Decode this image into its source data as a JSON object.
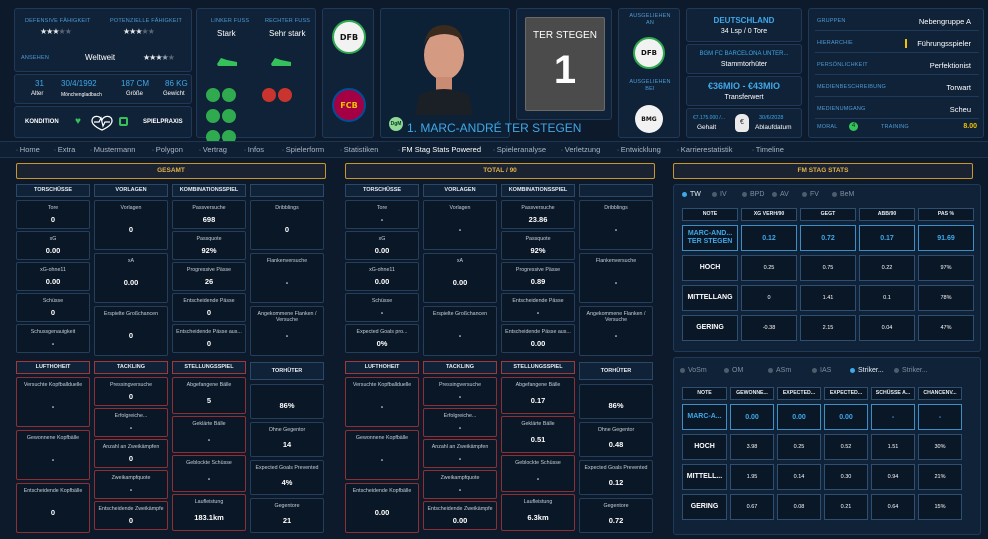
{
  "colors": {
    "accent": "#3fa8e8",
    "gold": "#e6b24a",
    "green": "#35c25a",
    "card": "#0f2238"
  },
  "top": {
    "ratings": {
      "defensive_label": "Defensive Fähigkeit",
      "potential_label": "Potenzielle Fähigkeit",
      "defensive_stars": 3,
      "potential_stars": 3,
      "reputation_label": "Ansehen",
      "reputation_value": "Weltweit",
      "reputation_stars": 3.5
    },
    "bio": {
      "age": "31",
      "age_label": "Alter",
      "dob": "30/4/1992",
      "birthplace": "Mönchengladbach",
      "height": "187 CM",
      "height_label": "Größe",
      "weight": "86 KG",
      "weight_label": "Gewicht"
    },
    "fitness": {
      "condition_label": "Kondition",
      "practice_label": "Spielpraxis"
    },
    "feet": {
      "left_label": "Linker Fuß",
      "left_value": "Stark",
      "right_label": "Rechter Fuß",
      "right_value": "Sehr stark"
    },
    "player": {
      "number": "1",
      "name": "1. MARC-ANDRÉ TER STEGEN",
      "badge": "DgM",
      "jersey_name": "TER STEGEN",
      "jersey_number": "1"
    },
    "clubs": {
      "national_crest": "DFB",
      "club_crest": "FCB",
      "loan_label": "Ausgeliehen an",
      "loaned_from_label": "Ausgeliehen bei",
      "youth_crest": "BMG"
    },
    "nation": {
      "name": "DEUTSCHLAND",
      "caps": "34 Lsp / 0 Tore"
    },
    "club_role": {
      "club": "BGM FC BARCELONA UNTER...",
      "role": "Stammtorhüter"
    },
    "value": {
      "range": "€36MIO - €43MIO",
      "label": "Transferwert"
    },
    "contract": {
      "wage": "€7.175.000 /...",
      "wage_label": "Gehalt",
      "expiry": "30/6/2028",
      "expiry_label": "Ablaufdatum"
    },
    "info": [
      {
        "label": "Gruppen",
        "value": "Nebengruppe A"
      },
      {
        "label": "Hierarchie",
        "value": "Führungsspieler"
      },
      {
        "label": "Persönlichkeit",
        "value": "Perfektionist"
      },
      {
        "label": "Medienbeschreibung",
        "value": "Torwart"
      },
      {
        "label": "Medienumgang",
        "value": "Scheu"
      }
    ],
    "morale": {
      "label": "Moral",
      "badge": "4",
      "training_label": "Training",
      "training_value": "8.00"
    }
  },
  "nav": [
    "Home",
    "Extra",
    "Mustermann",
    "Polygon",
    "Vertrag",
    "Infos",
    "Spielerform",
    "Statistiken",
    "FM Stag Stats Powered",
    "Spieleranalyse",
    "Verletzung",
    "Entwicklung",
    "Karrierestatistik",
    "Timeline"
  ],
  "nav_active": 8,
  "panels": [
    {
      "title": "GESAMT",
      "sections": {
        "shots": "TORSCHÜSSE",
        "assists": "VORLAGEN",
        "combo": "KOMBINATIONSSPIEL",
        "air": "LUFTHOHEIT",
        "tackling": "TACKLING",
        "position": "STELLUNGSSPIEL",
        "gk": "TORHÜTER"
      },
      "shots": [
        {
          "k": "Tore",
          "v": "0"
        },
        {
          "k": "xG",
          "v": "0.00"
        },
        {
          "k": "xG-ohne11",
          "v": "0.00"
        },
        {
          "k": "Schüsse",
          "v": "0"
        },
        {
          "k": "Schussgenauigkeit",
          "v": "-"
        }
      ],
      "assists": [
        {
          "k": "Vorlagen",
          "v": "0"
        },
        {
          "k": "xA",
          "v": "0.00"
        },
        {
          "k": "Erspielte Großchancen",
          "v": "0"
        }
      ],
      "combo": [
        {
          "k": "Passversuche",
          "v": "698"
        },
        {
          "k": "Passquote",
          "v": "92%"
        },
        {
          "k": "Progressive Pässe",
          "v": "26"
        },
        {
          "k": "Entscheidende Pässe",
          "v": "0"
        },
        {
          "k": "Entscheidende Pässe aus...",
          "v": "0"
        }
      ],
      "dribbles": [
        {
          "k": "Dribblings",
          "v": "0"
        },
        {
          "k": "Flankenversuche",
          "v": "-"
        },
        {
          "k": "Angekommene Flanken / Versuche",
          "v": "-"
        }
      ],
      "air": [
        {
          "k": "Versuchte Kopfballduelle",
          "v": "-"
        },
        {
          "k": "Gewonnene Kopfbälle",
          "v": "-"
        },
        {
          "k": "Entscheidende Kopfbälle",
          "v": "0"
        }
      ],
      "tackling": [
        {
          "k": "Pressingversuche",
          "v": "0"
        },
        {
          "k": "Erfolgreiche...",
          "v": "-"
        },
        {
          "k": "Anzahl an Zweikämpfen",
          "v": "0"
        },
        {
          "k": "Zweikampfquote",
          "v": "-"
        },
        {
          "k": "Entscheidende Zweikämpfe",
          "v": "0"
        }
      ],
      "position": [
        {
          "k": "Abgefangene Bälle",
          "v": "5"
        },
        {
          "k": "Geklärte Bälle",
          "v": "-"
        },
        {
          "k": "Geblockte Schüsse",
          "v": "-"
        },
        {
          "k": "Laufleistung",
          "v": "183.1km"
        }
      ],
      "gk": [
        {
          "k": "",
          "v": "86%"
        },
        {
          "k": "Ohne Gegentor",
          "v": "14"
        },
        {
          "k": "Expected Goals Prevented",
          "v": "4%"
        },
        {
          "k": "Gegentore",
          "v": "21"
        }
      ]
    },
    {
      "title": "TOTAL / 90",
      "sections": {
        "shots": "TORSCHÜSSE",
        "assists": "VORLAGEN",
        "combo": "KOMBINATIONSSPIEL",
        "air": "LUFTHOHEIT",
        "tackling": "TACKLING",
        "position": "STELLUNGSSPIEL",
        "gk": "TORHÜTER"
      },
      "shots": [
        {
          "k": "Tore",
          "v": "-"
        },
        {
          "k": "xG",
          "v": "0.00"
        },
        {
          "k": "xG-ohne11",
          "v": "0.00"
        },
        {
          "k": "Schüsse",
          "v": "-"
        },
        {
          "k": "Expected Goals pro...",
          "v": "0%"
        }
      ],
      "assists": [
        {
          "k": "Vorlagen",
          "v": "-"
        },
        {
          "k": "xA",
          "v": "0.00"
        },
        {
          "k": "Erspielte Großchancen",
          "v": "-"
        }
      ],
      "combo": [
        {
          "k": "Passversuche",
          "v": "23.86"
        },
        {
          "k": "Passquote",
          "v": "92%"
        },
        {
          "k": "Progressive Pässe",
          "v": "0.89"
        },
        {
          "k": "Entscheidende Pässe",
          "v": "-"
        },
        {
          "k": "Entscheidende Pässe aus...",
          "v": "0.00"
        }
      ],
      "dribbles": [
        {
          "k": "Dribblings",
          "v": "-"
        },
        {
          "k": "Flankenversuche",
          "v": "-"
        },
        {
          "k": "Angekommene Flanken / Versuche",
          "v": "-"
        }
      ],
      "air": [
        {
          "k": "Versuchte Kopfballduelle",
          "v": "-"
        },
        {
          "k": "Gewonnene Kopfbälle",
          "v": "-"
        },
        {
          "k": "Entscheidende Kopfbälle",
          "v": "0.00"
        }
      ],
      "tackling": [
        {
          "k": "Pressingversuche",
          "v": "-"
        },
        {
          "k": "Erfolgreiche...",
          "v": "-"
        },
        {
          "k": "Anzahl an Zweikämpfen",
          "v": "-"
        },
        {
          "k": "Zweikampfquote",
          "v": "-"
        },
        {
          "k": "Entscheidende Zweikämpfe",
          "v": "0.00"
        }
      ],
      "position": [
        {
          "k": "Abgefangene Bälle",
          "v": "0.17"
        },
        {
          "k": "Geklärte Bälle",
          "v": "0.51"
        },
        {
          "k": "Geblockte Schüsse",
          "v": "-"
        },
        {
          "k": "Laufleistung",
          "v": "6.3km"
        }
      ],
      "gk": [
        {
          "k": "",
          "v": "86%"
        },
        {
          "k": "Ohne Gegentor",
          "v": "0.48"
        },
        {
          "k": "Expected Goals Prevented",
          "v": "0.12"
        },
        {
          "k": "Gegentore",
          "v": "0.72"
        }
      ]
    }
  ],
  "stag": {
    "title": "FM STAG STATS",
    "tabs1": [
      "TW",
      "IV",
      "BPD",
      "AV",
      "FV",
      "BeM"
    ],
    "tabs1_active": 0,
    "table1": {
      "headers": [
        "NOTE",
        "XG VERH/90",
        "GEGT",
        "ABB/90",
        "PAS %"
      ],
      "rows": [
        {
          "label": "MARC-AND... TER STEGEN",
          "cells": [
            "0.12",
            "0.72",
            "0.17",
            "91.69"
          ],
          "hl": true
        },
        {
          "label": "HOCH",
          "cells": [
            "0.25",
            "0.75",
            "0.22",
            "97%"
          ]
        },
        {
          "label": "MITTELLANG",
          "cells": [
            "0",
            "1.41",
            "0.1",
            "78%"
          ]
        },
        {
          "label": "GERING",
          "cells": [
            "-0.38",
            "2.15",
            "0.04",
            "47%"
          ]
        }
      ]
    },
    "tabs2": [
      "VoSm",
      "OM",
      "ASm",
      "IAS",
      "Striker...",
      "Striker..."
    ],
    "tabs2_active": 4,
    "table2": {
      "headers": [
        "NOTE",
        "GEWONNE...",
        "EXPECTED...",
        "EXPECTED...",
        "SCHÜSSE A...",
        "CHANCENV..."
      ],
      "rows": [
        {
          "label": "MARC-A...",
          "cells": [
            "0.00",
            "0.00",
            "0.00",
            "-",
            "-"
          ],
          "hl": true
        },
        {
          "label": "HOCH",
          "cells": [
            "3.98",
            "0.25",
            "0.52",
            "1.51",
            "30%"
          ]
        },
        {
          "label": "MITTELL...",
          "cells": [
            "1.95",
            "0.14",
            "0.30",
            "0.94",
            "21%"
          ]
        },
        {
          "label": "GERING",
          "cells": [
            "0.67",
            "0.08",
            "0.21",
            "0.64",
            "15%"
          ]
        }
      ]
    }
  }
}
